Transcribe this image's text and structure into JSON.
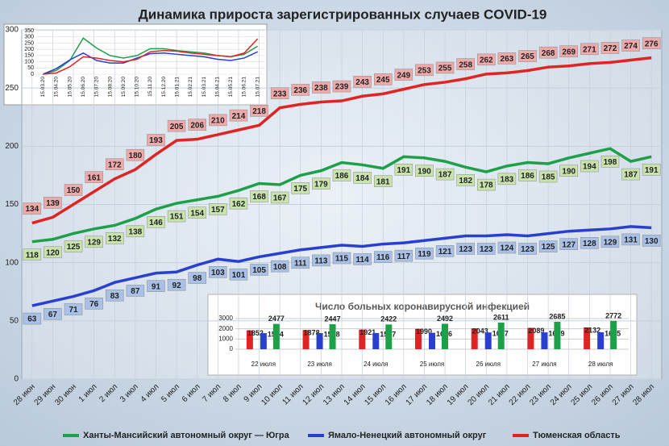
{
  "chart_data": [
    {
      "type": "line",
      "title": "Динамика прироста зарегистрированных случаев COVID-19",
      "categories": [
        "28 июн",
        "29 июн",
        "30 июн",
        "1 июл",
        "2 июл",
        "3 июл",
        "4 июл",
        "5 июл",
        "6 июл",
        "7 июл",
        "8 июл",
        "9 июл",
        "10 июл",
        "11 июл",
        "12 июл",
        "13 июл",
        "14 июл",
        "15 июл",
        "16 июл",
        "17 июл",
        "18 июл",
        "19 июл",
        "20 июл",
        "21 июл",
        "22 июл",
        "23 июл",
        "24 июл",
        "25 июл",
        "26 июл",
        "27 июл",
        "28 июл"
      ],
      "series": [
        {
          "name": "Ханты-Мансийский автономный округ — Югра",
          "color": "#1ea04a",
          "values": [
            118,
            120,
            125,
            129,
            132,
            138,
            146,
            151,
            154,
            157,
            162,
            168,
            167,
            175,
            179,
            186,
            184,
            181,
            191,
            190,
            187,
            182,
            178,
            183,
            186,
            185,
            190,
            194,
            198,
            187,
            191
          ]
        },
        {
          "name": "Ямало-Ненецкий автономный округ",
          "color": "#2a3fd0",
          "values": [
            63,
            67,
            71,
            76,
            83,
            87,
            91,
            92,
            98,
            103,
            101,
            105,
            108,
            111,
            113,
            115,
            114,
            116,
            117,
            119,
            121,
            123,
            123,
            124,
            123,
            125,
            127,
            128,
            129,
            131,
            130
          ]
        },
        {
          "name": "Тюменская область",
          "color": "#e02424",
          "values": [
            134,
            139,
            150,
            161,
            172,
            180,
            193,
            205,
            206,
            210,
            214,
            218,
            233,
            236,
            238,
            239,
            243,
            245,
            249,
            253,
            255,
            258,
            262,
            263,
            265,
            268,
            269,
            271,
            272,
            274,
            276
          ]
        }
      ],
      "ylim": [
        0,
        300
      ],
      "yticks": [
        0,
        50,
        100,
        150,
        200,
        250,
        300
      ],
      "grid": true
    },
    {
      "type": "bar",
      "title": "Число больных коронавирусной  инфекцией",
      "categories": [
        "22 июля",
        "23 июля",
        "24 июля",
        "25 июля",
        "26 июля",
        "27 июля",
        "28 июля"
      ],
      "series": [
        {
          "color": "#e02424",
          "values": [
            1852,
            1878,
            1921,
            1990,
            2043,
            2089,
            2132
          ]
        },
        {
          "color": "#2a3fd0",
          "values": [
            1574,
            1578,
            1587,
            1606,
            1637,
            1649,
            1655
          ]
        },
        {
          "color": "#1ea04a",
          "values": [
            2477,
            2447,
            2422,
            2492,
            2611,
            2685,
            2772
          ]
        }
      ],
      "ylim": [
        0,
        3000
      ],
      "yticks": [
        0,
        1000,
        2000,
        3000
      ],
      "grid": true
    },
    {
      "type": "line",
      "categories": [
        "15.03.20",
        "15.04.20",
        "15.05.20",
        "15.06.20",
        "15.07.20",
        "15.08.20",
        "15.09.20",
        "15.10.20",
        "15.11.20",
        "15.12.20",
        "15.01.21",
        "15.02.21",
        "15.03.21",
        "15.04.21",
        "15.05.21",
        "15.06.21",
        "15.07.21"
      ],
      "series": [
        {
          "color": "#1ea04a",
          "values": [
            0,
            30,
            110,
            290,
            210,
            150,
            130,
            150,
            205,
            205,
            190,
            180,
            170,
            150,
            140,
            160,
            225
          ]
        },
        {
          "color": "#2a3fd0",
          "values": [
            0,
            45,
            115,
            170,
            110,
            90,
            90,
            130,
            165,
            170,
            160,
            150,
            140,
            120,
            110,
            130,
            180
          ]
        },
        {
          "color": "#e02424",
          "values": [
            0,
            10,
            60,
            140,
            130,
            110,
            100,
            120,
            180,
            190,
            185,
            170,
            160,
            150,
            140,
            170,
            285
          ]
        }
      ],
      "ylim": [
        0,
        350
      ],
      "yticks": [
        0,
        50,
        100,
        150,
        200,
        250,
        300,
        350
      ],
      "grid": true
    }
  ]
}
